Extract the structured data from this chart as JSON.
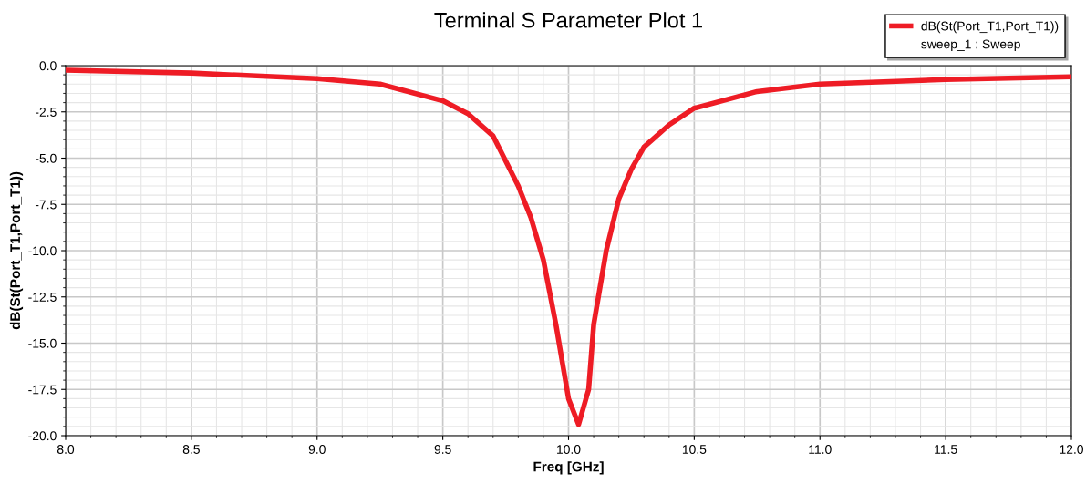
{
  "chart_data": {
    "type": "line",
    "title": "Terminal S Parameter Plot 1",
    "xlabel": "Freq [GHz]",
    "ylabel": "dB(St(Port_T1,Port_T1))",
    "x": [
      8.0,
      8.5,
      9.0,
      9.25,
      9.5,
      9.6,
      9.7,
      9.8,
      9.85,
      9.9,
      9.95,
      10.0,
      10.04,
      10.08,
      10.1,
      10.15,
      10.2,
      10.25,
      10.3,
      10.4,
      10.5,
      10.75,
      11.0,
      11.5,
      12.0
    ],
    "series": [
      {
        "name": "dB(St(Port_T1,Port_T1))",
        "color": "#ee1c25",
        "values": [
          -0.25,
          -0.4,
          -0.7,
          -1.0,
          -1.9,
          -2.6,
          -3.8,
          -6.5,
          -8.2,
          -10.5,
          -14.0,
          -18.0,
          -19.4,
          -17.5,
          -14.0,
          -10.0,
          -7.2,
          -5.6,
          -4.4,
          -3.2,
          -2.3,
          -1.4,
          -1.0,
          -0.75,
          -0.6
        ]
      }
    ],
    "annotations": [
      "sweep_1 : Sweep"
    ],
    "xlim": [
      8.0,
      12.0
    ],
    "ylim": [
      -20.0,
      0.0
    ],
    "xticks": [
      {
        "value": 8.0,
        "label": "8.0"
      },
      {
        "value": 8.5,
        "label": "8.5"
      },
      {
        "value": 9.0,
        "label": "9.0"
      },
      {
        "value": 9.5,
        "label": "9.5"
      },
      {
        "value": 10.0,
        "label": "10.0"
      },
      {
        "value": 10.5,
        "label": "10.5"
      },
      {
        "value": 11.0,
        "label": "11.0"
      },
      {
        "value": 11.5,
        "label": "11.5"
      },
      {
        "value": 12.0,
        "label": "12.0"
      }
    ],
    "yticks": [
      {
        "value": -20.0,
        "label": "-20.0"
      },
      {
        "value": -17.5,
        "label": "-17.5"
      },
      {
        "value": -15.0,
        "label": "-15.0"
      },
      {
        "value": -12.5,
        "label": "-12.5"
      },
      {
        "value": -10.0,
        "label": "-10.0"
      },
      {
        "value": -7.5,
        "label": "-7.5"
      },
      {
        "value": -5.0,
        "label": "-5.0"
      },
      {
        "value": -2.5,
        "label": "-2.5"
      },
      {
        "value": 0.0,
        "label": "0.0"
      }
    ],
    "grid": true,
    "legend": "top right",
    "marker": "none",
    "line_style": "solid"
  }
}
